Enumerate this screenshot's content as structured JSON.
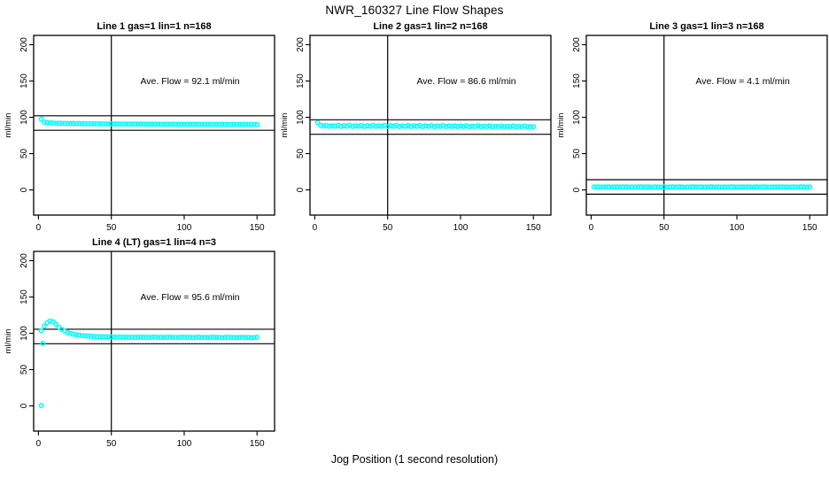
{
  "page": {
    "title": "NWR_160327  Line Flow Shapes",
    "xlabel": "Jog Position (1 second resolution)",
    "background_color": "#ffffff",
    "marker_color": "#00ffff",
    "line_color": "#000000"
  },
  "chart_data": [
    {
      "type": "scatter",
      "title": "Line 1 gas=1 lin=1 n=168",
      "annotation": {
        "text": "Ave. Flow =  92.1  ml/min",
        "x": 104,
        "y": 150
      },
      "ave_flow_ml_min": 92.1,
      "n": 168,
      "ylabel": "ml/min",
      "x_ticks": [
        0,
        50,
        100,
        150
      ],
      "y_ticks": [
        0,
        50,
        100,
        150,
        200
      ],
      "xlim": [
        -3.3,
        162
      ],
      "ylim": [
        -34.7,
        212.8
      ],
      "vline_x": 50,
      "hlines": [
        102.1,
        82.1
      ],
      "marker_color": "#00ffff",
      "series": {
        "x_start": 2,
        "x_step": 2,
        "y": [
          97.5,
          93.2,
          92.6,
          92.3,
          92.0,
          91.9,
          91.7,
          91.8,
          91.5,
          91.6,
          91.4,
          91.5,
          91.3,
          91.4,
          91.2,
          91.3,
          91.1,
          91.2,
          91.0,
          91.1,
          91.0,
          90.9,
          91.0,
          90.8,
          90.9,
          90.8,
          90.9,
          90.7,
          90.8,
          90.7,
          90.8,
          90.6,
          90.7,
          90.6,
          90.7,
          90.5,
          90.6,
          90.5,
          90.6,
          90.5,
          90.6,
          90.4,
          90.5,
          90.4,
          90.5,
          90.4,
          90.5,
          90.3,
          90.4,
          90.3,
          90.4,
          90.3,
          90.4,
          90.3,
          90.4,
          90.2,
          90.3,
          90.2,
          90.3,
          90.2,
          90.3,
          90.2,
          90.3,
          90.1,
          90.2,
          90.1,
          90.2,
          90.1,
          90.2,
          90.1,
          90.2,
          90.0,
          90.1,
          90.0,
          90.1
        ]
      },
      "extra_points": []
    },
    {
      "type": "scatter",
      "title": "Line 2 gas=1 lin=2 n=168",
      "annotation": {
        "text": "Ave. Flow =  86.6  ml/min",
        "x": 104,
        "y": 150
      },
      "ave_flow_ml_min": 86.6,
      "n": 168,
      "ylabel": "ml/min",
      "x_ticks": [
        0,
        50,
        100,
        150
      ],
      "y_ticks": [
        0,
        50,
        100,
        150,
        200
      ],
      "xlim": [
        -3.3,
        162
      ],
      "ylim": [
        -34.7,
        212.8
      ],
      "vline_x": 50,
      "hlines": [
        96.6,
        76.6
      ],
      "marker_color": "#00ffff",
      "series": {
        "x_start": 2,
        "x_step": 2,
        "y": [
          92.5,
          89.0,
          88.2,
          88.8,
          87.6,
          88.4,
          87.9,
          88.9,
          87.4,
          88.6,
          87.8,
          89.1,
          87.5,
          88.3,
          87.9,
          88.7,
          87.3,
          88.5,
          87.8,
          89.0,
          87.4,
          88.2,
          87.7,
          88.8,
          87.2,
          88.4,
          87.8,
          88.9,
          87.3,
          88.1,
          87.6,
          88.6,
          87.2,
          88.3,
          87.7,
          88.8,
          87.1,
          88.2,
          87.6,
          88.5,
          87.0,
          88.1,
          87.5,
          88.7,
          87.1,
          88.0,
          87.4,
          88.5,
          87.0,
          87.9,
          87.4,
          88.4,
          86.9,
          87.8,
          87.3,
          88.3,
          86.9,
          87.7,
          87.2,
          88.2,
          86.8,
          87.6,
          87.1,
          88.1,
          86.8,
          87.5,
          87.0,
          88.0,
          86.7,
          87.4,
          87.0,
          87.9,
          86.7,
          87.3,
          86.9
        ]
      },
      "extra_points": []
    },
    {
      "type": "scatter",
      "title": "Line 3 gas=1 lin=3 n=168",
      "annotation": {
        "text": "Ave. Flow =  4.1  ml/min",
        "x": 104,
        "y": 150
      },
      "ave_flow_ml_min": 4.1,
      "n": 168,
      "ylabel": "ml/min",
      "x_ticks": [
        0,
        50,
        100,
        150
      ],
      "y_ticks": [
        0,
        50,
        100,
        150,
        200
      ],
      "xlim": [
        -3.3,
        162
      ],
      "ylim": [
        -34.7,
        212.8
      ],
      "vline_x": 50,
      "hlines": [
        14.1,
        -5.9
      ],
      "marker_color": "#00ffff",
      "series": {
        "x_start": 2,
        "x_step": 2,
        "y": [
          4.2,
          4.0,
          4.1,
          3.9,
          4.0,
          4.2,
          3.8,
          4.1,
          4.0,
          3.9,
          4.2,
          4.0,
          3.8,
          4.1,
          3.9,
          4.0,
          4.2,
          3.9,
          4.1,
          4.0,
          3.8,
          4.2,
          4.0,
          3.9,
          4.1,
          3.8,
          4.0,
          4.2,
          3.9,
          4.1,
          4.0,
          3.8,
          4.1,
          3.9,
          4.2,
          4.0,
          3.9,
          4.1,
          3.8,
          4.0,
          4.2,
          3.9,
          4.1,
          4.0,
          3.8,
          4.1,
          3.9,
          4.2,
          4.0,
          3.8,
          4.1,
          3.9,
          4.0,
          4.2,
          3.8,
          4.1,
          4.0,
          3.9,
          4.2,
          4.0,
          3.8,
          4.1,
          3.9,
          4.0,
          4.2,
          3.9,
          4.1,
          3.8,
          4.0,
          4.1,
          3.9,
          4.2,
          4.0,
          3.9,
          4.1
        ]
      },
      "extra_points": []
    },
    {
      "type": "scatter",
      "title": "Line 4 (LT) gas=1 lin=4 n=3",
      "annotation": {
        "text": "Ave. Flow =  95.6  ml/min",
        "x": 104,
        "y": 150
      },
      "ave_flow_ml_min": 95.6,
      "n": 3,
      "ylabel": "ml/min",
      "x_ticks": [
        0,
        50,
        100,
        150
      ],
      "y_ticks": [
        0,
        50,
        100,
        150,
        200
      ],
      "xlim": [
        -3.3,
        162
      ],
      "ylim": [
        -34.7,
        212.8
      ],
      "vline_x": 50,
      "hlines": [
        105.6,
        85.6
      ],
      "marker_color": "#00ffff",
      "series": {
        "x_start": 2,
        "x_step": 2,
        "y": [
          103.5,
          110.0,
          114.5,
          117.0,
          116.0,
          112.5,
          108.5,
          105.5,
          103.0,
          101.0,
          99.8,
          98.8,
          98.0,
          97.4,
          96.9,
          96.5,
          96.2,
          95.9,
          95.7,
          95.4,
          95.2,
          95.3,
          94.9,
          95.1,
          94.8,
          95.0,
          94.6,
          94.9,
          94.5,
          94.8,
          94.4,
          94.7,
          94.3,
          94.6,
          94.9,
          94.4,
          94.7,
          94.2,
          94.6,
          94.9,
          94.3,
          94.7,
          94.2,
          94.5,
          94.9,
          94.3,
          94.6,
          94.1,
          94.5,
          94.8,
          94.2,
          94.6,
          94.0,
          94.4,
          94.8,
          94.2,
          94.5,
          94.0,
          94.4,
          94.7,
          94.1,
          94.5,
          93.9,
          94.3,
          94.7,
          94.1,
          94.4,
          93.9,
          94.3,
          94.6,
          94.0,
          94.4,
          93.8,
          94.2,
          94.5
        ]
      },
      "extra_points": [
        [
          2,
          0.5
        ],
        [
          3,
          86.0
        ]
      ]
    }
  ]
}
